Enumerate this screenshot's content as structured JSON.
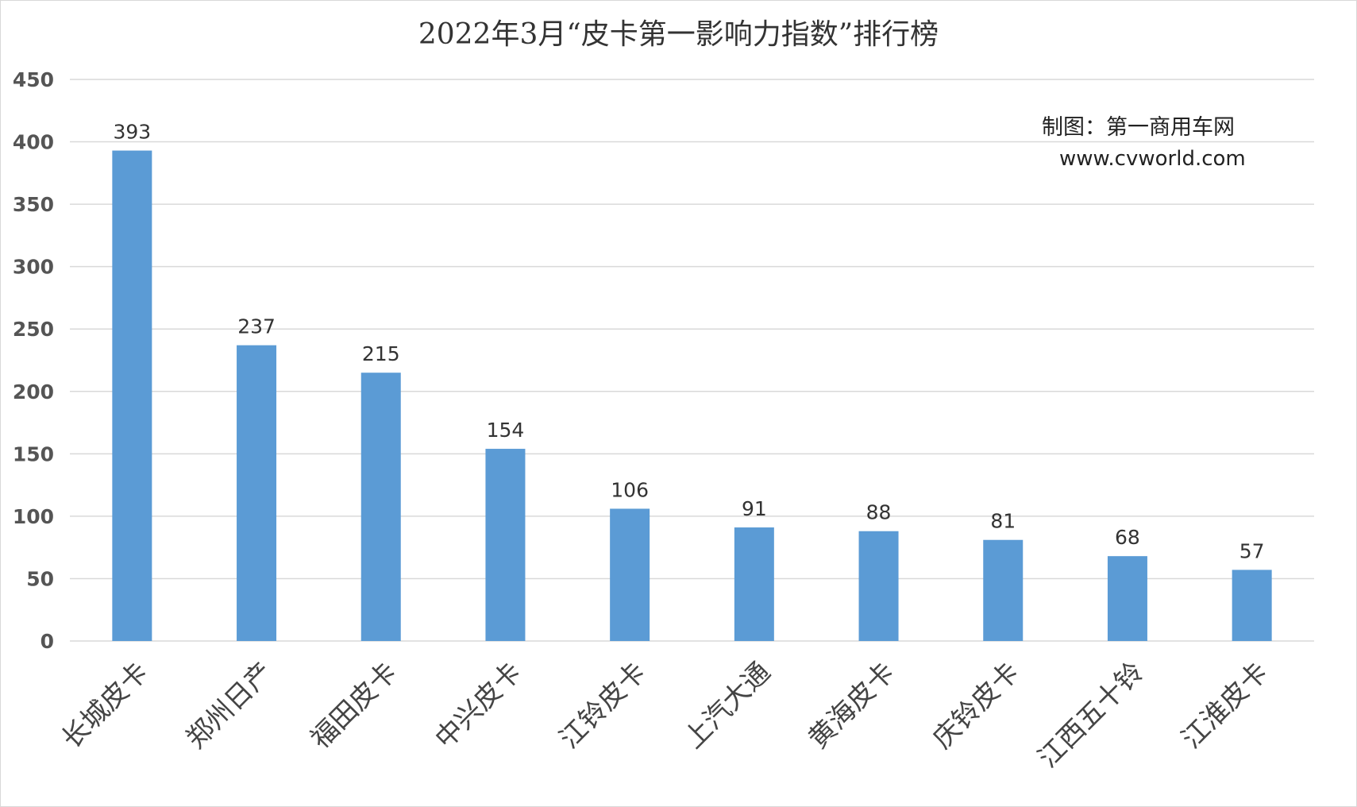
{
  "credit": {
    "line1": "制图：第一商用车网",
    "line2": "www.cvworld.com"
  },
  "colors": {
    "bar": "#5b9bd5",
    "grid": "#d9d9d9"
  },
  "chart_data": {
    "type": "bar",
    "title": "2022年3月“皮卡第一影响力指数”排行榜",
    "xlabel": "",
    "ylabel": "",
    "categories": [
      "长城皮卡",
      "郑州日产",
      "福田皮卡",
      "中兴皮卡",
      "江铃皮卡",
      "上汽大通",
      "黄海皮卡",
      "庆铃皮卡",
      "江西五十铃",
      "江淮皮卡"
    ],
    "values": [
      393,
      237,
      215,
      154,
      106,
      91,
      88,
      81,
      68,
      57
    ],
    "ylim": [
      0,
      450
    ],
    "yticks": [
      0,
      50,
      100,
      150,
      200,
      250,
      300,
      350,
      400,
      450
    ],
    "grid": true,
    "data_labels": true,
    "legend": "none"
  }
}
